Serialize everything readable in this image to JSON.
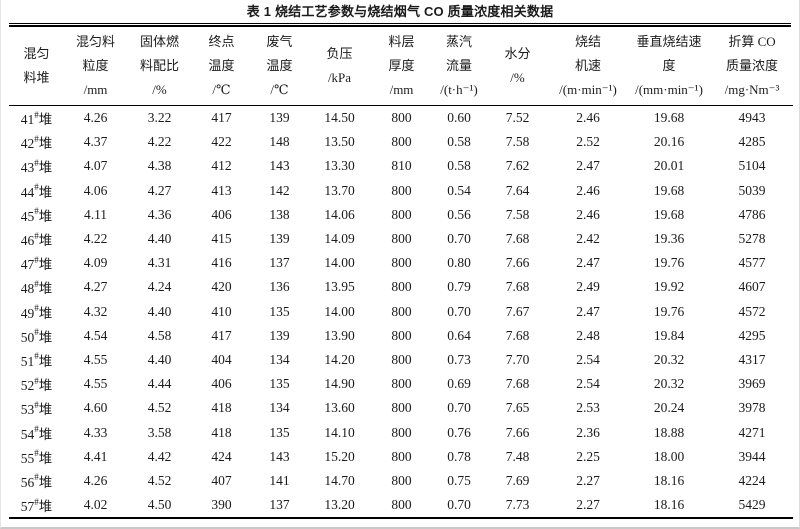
{
  "page": {
    "title": "表 1  烧结工艺参数与烧结烟气 CO 质量浓度相关数据"
  },
  "colors": {
    "background": "#ffffff",
    "text": "#1b1b1b",
    "rule": "#000000"
  },
  "table": {
    "columns": [
      {
        "id": "pile",
        "lines": [
          "混匀",
          "料堆"
        ]
      },
      {
        "id": "particle-size",
        "lines": [
          "混匀料",
          "粒度",
          "/mm"
        ]
      },
      {
        "id": "solid-fuel-ratio",
        "lines": [
          "固体燃",
          "料配比",
          "/%"
        ]
      },
      {
        "id": "end-point-temp",
        "lines": [
          "终点",
          "温度",
          "/℃"
        ]
      },
      {
        "id": "flue-gas-temp",
        "lines": [
          "废气",
          "温度",
          "/℃"
        ]
      },
      {
        "id": "negative-pressure",
        "lines": [
          "负压",
          "/kPa"
        ]
      },
      {
        "id": "bed-thickness",
        "lines": [
          "料层",
          "厚度",
          "/mm"
        ]
      },
      {
        "id": "steam-flow",
        "lines": [
          "蒸汽",
          "流量",
          "/(t·h⁻¹)"
        ]
      },
      {
        "id": "moisture",
        "lines": [
          "水分",
          "/%"
        ]
      },
      {
        "id": "machine-speed",
        "lines": [
          "烧结",
          "机速",
          "/(m·min⁻¹)"
        ]
      },
      {
        "id": "vertical-sintering-speed",
        "lines": [
          "垂直烧结速",
          "度",
          "/(mm·min⁻¹)"
        ]
      },
      {
        "id": "co-mass-concentration",
        "lines": [
          "折算 CO",
          "质量浓度",
          "/mg·Nm⁻³"
        ]
      }
    ],
    "rows": [
      [
        "41#堆",
        "4.26",
        "3.22",
        "417",
        "139",
        "14.50",
        "800",
        "0.60",
        "7.52",
        "2.46",
        "19.68",
        "4943"
      ],
      [
        "42#堆",
        "4.37",
        "4.22",
        "422",
        "148",
        "13.50",
        "800",
        "0.58",
        "7.58",
        "2.52",
        "20.16",
        "4285"
      ],
      [
        "43#堆",
        "4.07",
        "4.38",
        "412",
        "143",
        "13.30",
        "810",
        "0.58",
        "7.62",
        "2.47",
        "20.01",
        "5104"
      ],
      [
        "44#堆",
        "4.06",
        "4.27",
        "413",
        "142",
        "13.70",
        "800",
        "0.54",
        "7.64",
        "2.46",
        "19.68",
        "5039"
      ],
      [
        "45#堆",
        "4.11",
        "4.36",
        "406",
        "138",
        "14.06",
        "800",
        "0.56",
        "7.58",
        "2.46",
        "19.68",
        "4786"
      ],
      [
        "46#堆",
        "4.22",
        "4.40",
        "415",
        "139",
        "14.09",
        "800",
        "0.70",
        "7.68",
        "2.42",
        "19.36",
        "5278"
      ],
      [
        "47#堆",
        "4.09",
        "4.31",
        "416",
        "137",
        "14.00",
        "800",
        "0.80",
        "7.66",
        "2.47",
        "19.76",
        "4577"
      ],
      [
        "48#堆",
        "4.27",
        "4.24",
        "420",
        "136",
        "13.95",
        "800",
        "0.79",
        "7.68",
        "2.49",
        "19.92",
        "4607"
      ],
      [
        "49#堆",
        "4.32",
        "4.40",
        "410",
        "135",
        "14.00",
        "800",
        "0.70",
        "7.67",
        "2.47",
        "19.76",
        "4572"
      ],
      [
        "50#堆",
        "4.54",
        "4.58",
        "417",
        "139",
        "13.90",
        "800",
        "0.64",
        "7.68",
        "2.48",
        "19.84",
        "4295"
      ],
      [
        "51#堆",
        "4.55",
        "4.40",
        "404",
        "134",
        "14.20",
        "800",
        "0.73",
        "7.70",
        "2.54",
        "20.32",
        "4317"
      ],
      [
        "52#堆",
        "4.55",
        "4.44",
        "406",
        "135",
        "14.90",
        "800",
        "0.69",
        "7.68",
        "2.54",
        "20.32",
        "3969"
      ],
      [
        "53#堆",
        "4.60",
        "4.52",
        "418",
        "134",
        "13.60",
        "800",
        "0.70",
        "7.65",
        "2.53",
        "20.24",
        "3978"
      ],
      [
        "54#堆",
        "4.33",
        "3.58",
        "418",
        "135",
        "14.10",
        "800",
        "0.76",
        "7.66",
        "2.36",
        "18.88",
        "4271"
      ],
      [
        "55#堆",
        "4.41",
        "4.42",
        "424",
        "143",
        "15.20",
        "800",
        "0.78",
        "7.48",
        "2.25",
        "18.00",
        "3944"
      ],
      [
        "56#堆",
        "4.26",
        "4.52",
        "407",
        "141",
        "14.70",
        "800",
        "0.75",
        "7.69",
        "2.27",
        "18.16",
        "4224"
      ],
      [
        "57#堆",
        "4.02",
        "4.50",
        "390",
        "137",
        "13.20",
        "800",
        "0.70",
        "7.73",
        "2.27",
        "18.16",
        "5429"
      ]
    ]
  }
}
